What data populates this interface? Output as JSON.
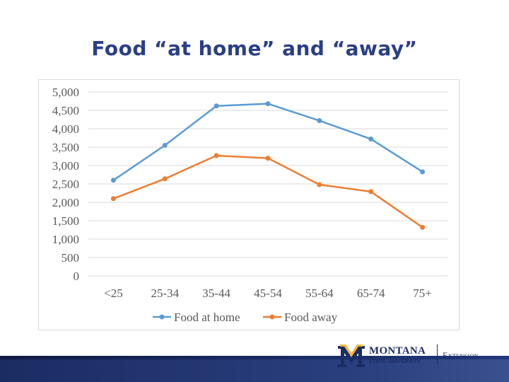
{
  "slide": {
    "title": "Food “at home” and “away”"
  },
  "logo": {
    "name_line1": "MONTANA",
    "name_line2": "STATE UNIVERSITY",
    "division": "Extension",
    "accent_color": "#f2b632",
    "brand_color": "#1b2c63"
  },
  "chart_data": {
    "type": "line",
    "categories": [
      "<25",
      "25-34",
      "35-44",
      "45-54",
      "55-64",
      "65-74",
      "75+"
    ],
    "series": [
      {
        "name": "Food at home",
        "color": "#5b9bd5",
        "values": [
          2600,
          3550,
          4620,
          4680,
          4220,
          3720,
          2830
        ]
      },
      {
        "name": "Food away",
        "color": "#ed7d31",
        "values": [
          2100,
          2640,
          3270,
          3200,
          2480,
          2290,
          1320
        ]
      }
    ],
    "y_ticks": [
      "5,000",
      "4,500",
      "4,000",
      "3,500",
      "3,000",
      "2,500",
      "2,000",
      "1,500",
      "1,000",
      "500",
      "0"
    ],
    "ylim": [
      0,
      5000
    ],
    "grid": "horizontal",
    "legend_position": "bottom"
  }
}
